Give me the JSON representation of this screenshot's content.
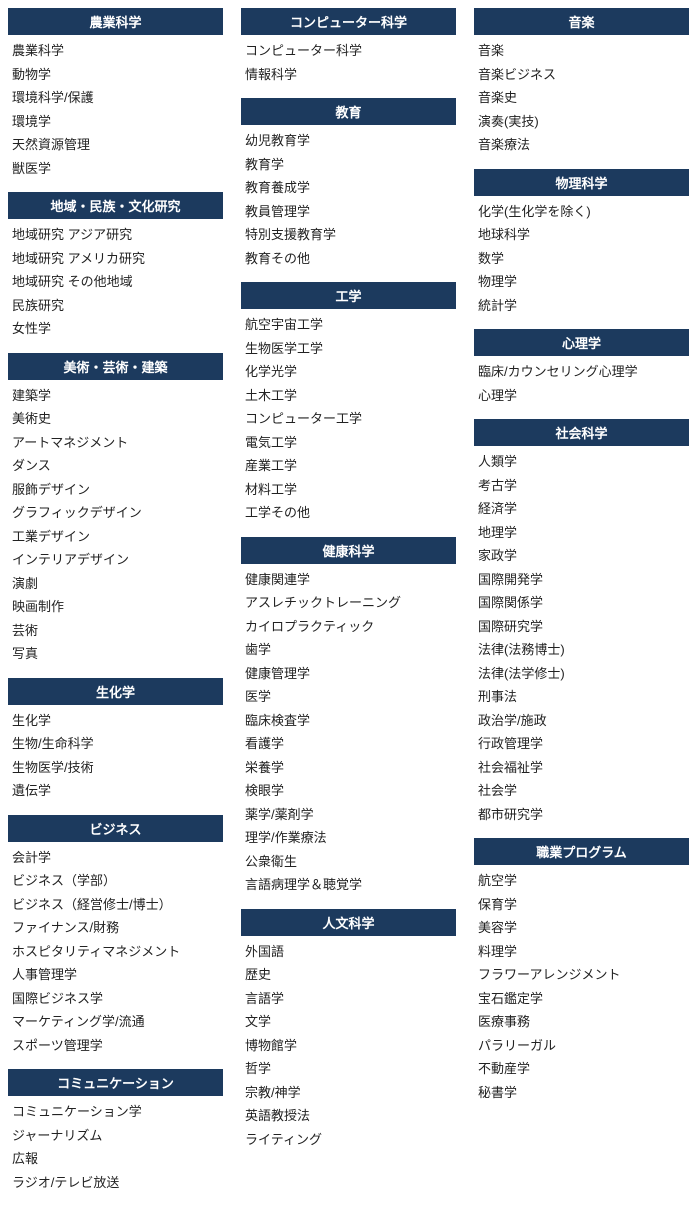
{
  "columns": [
    [
      {
        "title": "農業科学",
        "items": [
          "農業科学",
          "動物学",
          "環境科学/保護",
          "環境学",
          "天然資源管理",
          "獣医学"
        ]
      },
      {
        "title": "地域・民族・文化研究",
        "items": [
          "地域研究 アジア研究",
          "地域研究 アメリカ研究",
          "地域研究 その他地域",
          "民族研究",
          "女性学"
        ]
      },
      {
        "title": "美術・芸術・建築",
        "items": [
          "建築学",
          "美術史",
          "アートマネジメント",
          "ダンス",
          "服飾デザイン",
          "グラフィックデザイン",
          "工業デザイン",
          "インテリアデザイン",
          "演劇",
          "映画制作",
          "芸術",
          "写真"
        ]
      },
      {
        "title": "生化学",
        "items": [
          "生化学",
          "生物/生命科学",
          "生物医学/技術",
          "遺伝学"
        ]
      },
      {
        "title": "ビジネス",
        "items": [
          "会計学",
          "ビジネス（学部）",
          "ビジネス（経営修士/博士）",
          "ファイナンス/財務",
          "ホスピタリティマネジメント",
          "人事管理学",
          "国際ビジネス学",
          "マーケティング学/流通",
          "スポーツ管理学"
        ]
      },
      {
        "title": "コミュニケーション",
        "items": [
          "コミュニケーション学",
          "ジャーナリズム",
          "広報",
          "ラジオ/テレビ放送"
        ]
      }
    ],
    [
      {
        "title": "コンピューター科学",
        "items": [
          "コンピューター科学",
          "情報科学"
        ]
      },
      {
        "title": "教育",
        "items": [
          "幼児教育学",
          "教育学",
          "教育養成学",
          "教員管理学",
          "特別支援教育学",
          "教育その他"
        ]
      },
      {
        "title": "工学",
        "items": [
          "航空宇宙工学",
          "生物医学工学",
          "化学光学",
          "土木工学",
          "コンピューター工学",
          "電気工学",
          "産業工学",
          "材料工学",
          "工学その他"
        ]
      },
      {
        "title": "健康科学",
        "items": [
          "健康関連学",
          "アスレチックトレーニング",
          "カイロプラクティック",
          "歯学",
          "健康管理学",
          "医学",
          "臨床検査学",
          "看護学",
          "栄養学",
          "検眼学",
          "薬学/薬剤学",
          "理学/作業療法",
          "公衆衛生",
          "言語病理学＆聴覚学"
        ]
      },
      {
        "title": "人文科学",
        "items": [
          "外国語",
          "歴史",
          "言語学",
          "文学",
          "博物館学",
          "哲学",
          "宗教/神学",
          "英語教授法",
          "ライティング"
        ]
      }
    ],
    [
      {
        "title": "音楽",
        "items": [
          "音楽",
          "音楽ビジネス",
          "音楽史",
          "演奏(実技)",
          "音楽療法"
        ]
      },
      {
        "title": "物理科学",
        "items": [
          "化学(生化学を除く)",
          "地球科学",
          "数学",
          "物理学",
          "統計学"
        ]
      },
      {
        "title": "心理学",
        "items": [
          "臨床/カウンセリング心理学",
          "心理学"
        ]
      },
      {
        "title": "社会科学",
        "items": [
          "人類学",
          "考古学",
          "経済学",
          "地理学",
          "家政学",
          "国際開発学",
          "国際関係学",
          "国際研究学",
          "法律(法務博士)",
          "法律(法学修士)",
          "刑事法",
          "政治学/施政",
          "行政管理学",
          "社会福祉学",
          "社会学",
          "都市研究学"
        ]
      },
      {
        "title": "職業プログラム",
        "items": [
          "航空学",
          "保育学",
          "美容学",
          "料理学",
          "フラワーアレンジメント",
          "宝石鑑定学",
          "医療事務",
          "パラリーガル",
          "不動産学",
          "秘書学"
        ]
      }
    ]
  ]
}
